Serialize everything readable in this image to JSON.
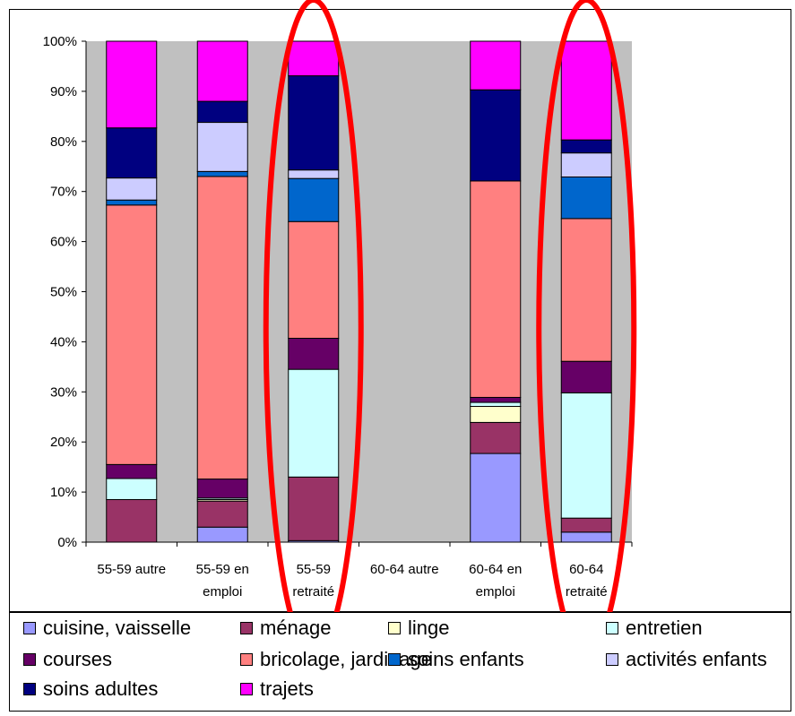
{
  "chart_data": {
    "type": "bar",
    "stacked": true,
    "categories": [
      [
        "55-59 autre"
      ],
      [
        "55-59 en",
        "emploi"
      ],
      [
        "55-59",
        "retraité"
      ],
      [
        "60-64 autre"
      ],
      [
        "60-64 en",
        "emploi"
      ],
      [
        "60-64",
        "retraité"
      ]
    ],
    "yticks": [
      "0%",
      "10%",
      "20%",
      "30%",
      "40%",
      "50%",
      "60%",
      "70%",
      "80%",
      "90%",
      "100%"
    ],
    "ylim": [
      0,
      100
    ],
    "grid": false,
    "legend_position": "bottom",
    "series": [
      {
        "name": "cuisine, vaisselle",
        "color": "#9999ff",
        "values": [
          0,
          3,
          0.3,
          0,
          17.7,
          2
        ]
      },
      {
        "name": "ménage",
        "color": "#993366",
        "values": [
          8.5,
          5.2,
          12.7,
          0,
          6.2,
          2.8
        ]
      },
      {
        "name": "linge",
        "color": "#ffffcc",
        "values": [
          0,
          0.3,
          0,
          0,
          3.2,
          0
        ]
      },
      {
        "name": "entretien",
        "color": "#ccffff",
        "values": [
          4.2,
          0.3,
          21.5,
          0,
          0.8,
          25
        ]
      },
      {
        "name": "courses",
        "color": "#660066",
        "values": [
          2.8,
          3.8,
          6.2,
          0,
          1,
          6.3
        ]
      },
      {
        "name": "bricolage, jardinage",
        "color": "#ff8080",
        "values": [
          51.8,
          60.4,
          23.3,
          0,
          43.2,
          28.5
        ]
      },
      {
        "name": "soins enfants",
        "color": "#0066cc",
        "values": [
          1,
          1,
          8.6,
          0,
          0,
          8.3
        ]
      },
      {
        "name": "activités enfants",
        "color": "#ccccff",
        "values": [
          4.4,
          9.8,
          1.7,
          0,
          0,
          4.8
        ]
      },
      {
        "name": "soins adultes",
        "color": "#000080",
        "values": [
          10,
          4.2,
          18.8,
          0,
          18.2,
          2.6
        ]
      },
      {
        "name": "trajets",
        "color": "#ff00ff",
        "values": [
          17.3,
          12,
          6.9,
          0,
          9.7,
          19.7
        ]
      }
    ],
    "highlight_categories": [
      2,
      5
    ],
    "highlight_color": "#ff0000"
  },
  "colors": {
    "plot_background": "#c0c0c0",
    "bar_border": "#000000"
  }
}
